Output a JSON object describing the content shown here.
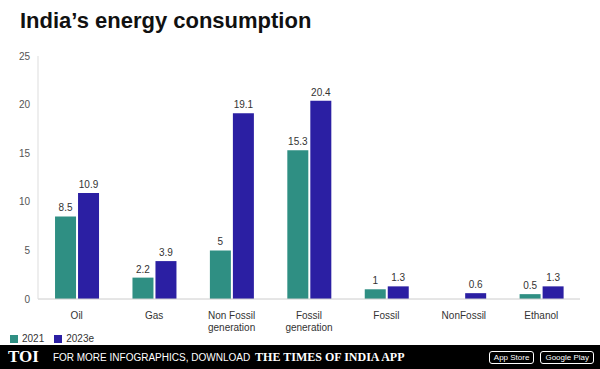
{
  "chart_data": {
    "type": "bar",
    "title": "India’s energy consumption",
    "categories": [
      "Oil",
      "Gas",
      "Non Fossil generation",
      "Fossil generation",
      "Fossil",
      "NonFossil",
      "Ethanol"
    ],
    "series": [
      {
        "name": "2021",
        "color": "#2f8f83",
        "values": [
          8.5,
          2.2,
          5,
          15.3,
          1,
          0,
          0.5
        ]
      },
      {
        "name": "2023e",
        "color": "#2b1fa3",
        "values": [
          10.9,
          3.9,
          19.1,
          20.4,
          1.3,
          0.6,
          1.3
        ]
      }
    ],
    "ylim": [
      0,
      25
    ],
    "yticks": [
      0,
      5,
      10,
      15,
      20,
      25
    ],
    "grid": false,
    "legend": "bottom-left",
    "data_labels": true
  },
  "footer": {
    "logo": "TOI",
    "text": "FOR MORE INFOGRAPHICS, DOWNLOAD",
    "app": "THE TIMES OF INDIA APP",
    "stores": [
      "App Store",
      "Google Play"
    ]
  }
}
